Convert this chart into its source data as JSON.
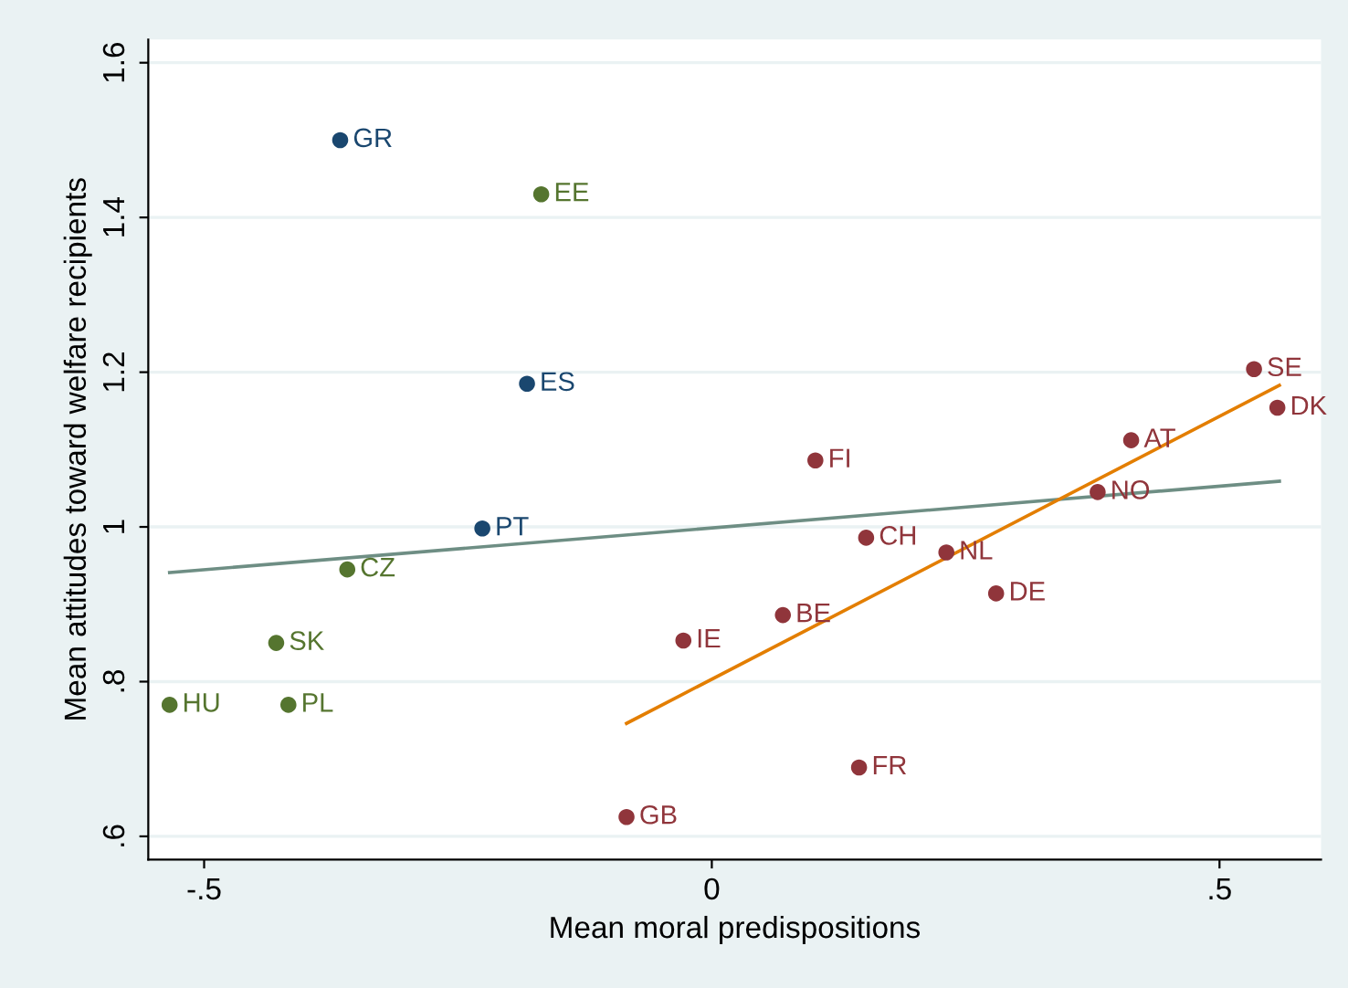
{
  "chart_data": {
    "type": "scatter",
    "xlabel": "Mean moral predispositions",
    "ylabel": "Mean attitudes toward welfare recipients",
    "xlim": [
      -0.555,
      0.6
    ],
    "ylim": [
      0.57,
      1.63
    ],
    "xticks": [
      {
        "value": -0.5,
        "label": "-.5"
      },
      0,
      {
        "value": 0.5,
        "label": ".5"
      }
    ],
    "yticks": [
      {
        "value": 0.6,
        "label": ".6"
      },
      {
        "value": 0.8,
        "label": ".8"
      },
      1,
      1.2,
      1.4,
      1.6
    ],
    "grid": "y",
    "legend": false,
    "series": [
      {
        "marker": "circle",
        "color": "#1a476f",
        "x": [
          -0.366,
          -0.182,
          -0.226
        ],
        "values": [
          1.5,
          1.185,
          0.998
        ],
        "value_labels": [
          "GR",
          "ES",
          "PT"
        ]
      },
      {
        "marker": "circle",
        "color": "#55752f",
        "x": [
          -0.168,
          -0.359,
          -0.429,
          -0.534,
          -0.417
        ],
        "values": [
          1.43,
          0.945,
          0.85,
          0.77,
          0.77
        ],
        "value_labels": [
          "EE",
          "CZ",
          "SK",
          "HU",
          "PL"
        ]
      },
      {
        "marker": "circle",
        "color": "#90353b",
        "x": [
          -0.084,
          -0.028,
          0.07,
          0.102,
          0.152,
          0.231,
          0.28,
          0.145,
          0.38,
          0.413,
          0.534,
          0.557
        ],
        "values": [
          0.625,
          0.853,
          0.886,
          1.086,
          0.986,
          0.967,
          0.914,
          0.689,
          1.045,
          1.112,
          1.204,
          1.154
        ],
        "value_labels": [
          "GB",
          "IE",
          "BE",
          "FI",
          "CH",
          "NL",
          "DE",
          "FR",
          "NO",
          "AT",
          "SE",
          "DK"
        ]
      },
      {
        "type": "line",
        "color": "#6e8e84",
        "x": [
          -0.534,
          0.559
        ],
        "values": [
          0.941,
          1.059
        ]
      },
      {
        "type": "line",
        "color": "#e37e00",
        "x": [
          -0.084,
          0.559
        ],
        "values": [
          0.746,
          1.183
        ]
      }
    ]
  }
}
